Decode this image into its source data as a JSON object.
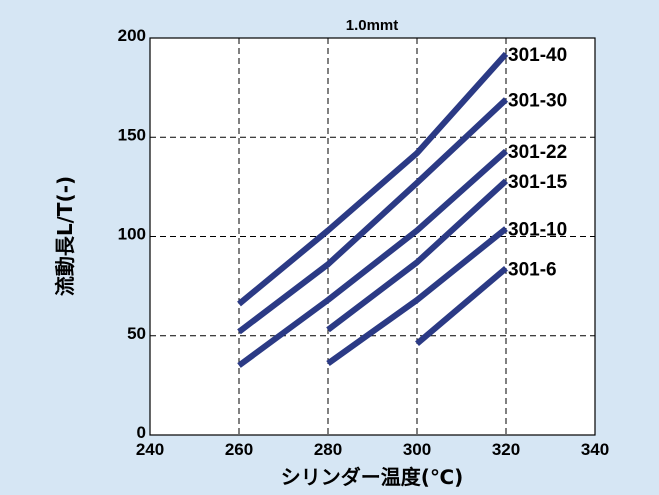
{
  "colors": {
    "background": "#d6e6f4",
    "plot_background": "#ffffff",
    "line": "#2b3a85",
    "grid": "#000000"
  },
  "chart_data": {
    "type": "line",
    "title": "1.0mmt",
    "xlabel": "シリンダー温度(℃)",
    "ylabel": "流動長L/T(-)",
    "xlim": [
      240,
      340
    ],
    "ylim": [
      0,
      200
    ],
    "xticks": [
      240,
      260,
      280,
      300,
      320,
      340
    ],
    "yticks": [
      0,
      50,
      100,
      150,
      200
    ],
    "grid": true,
    "grid_style": "dashed",
    "legend": "labels at line ends (right)",
    "series": [
      {
        "name": "301-40",
        "x": [
          260,
          280,
          300,
          320
        ],
        "y": [
          66,
          103,
          142,
          192
        ]
      },
      {
        "name": "301-30",
        "x": [
          260,
          280,
          300,
          320
        ],
        "y": [
          52,
          86,
          127,
          169
        ]
      },
      {
        "name": "301-22",
        "x": [
          260,
          280,
          300,
          320
        ],
        "y": [
          35,
          68,
          103,
          143
        ]
      },
      {
        "name": "301-15",
        "x": [
          280,
          300,
          320
        ],
        "y": [
          53,
          87,
          128
        ]
      },
      {
        "name": "301-10",
        "x": [
          280,
          300,
          320
        ],
        "y": [
          36,
          68,
          104
        ]
      },
      {
        "name": "301-6",
        "x": [
          300,
          320
        ],
        "y": [
          46,
          84
        ]
      }
    ]
  }
}
